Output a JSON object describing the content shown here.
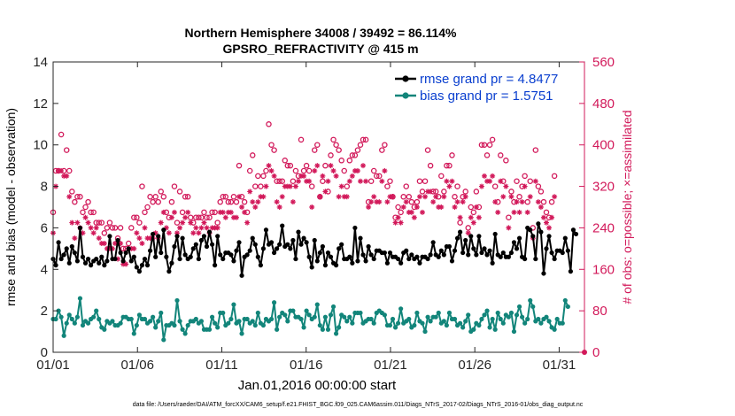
{
  "colors": {
    "rmse": "#000000",
    "bias": "#12857a",
    "obs": "#d2195a",
    "legend_text": "#0a3fcf"
  },
  "chart_data": {
    "type": "line",
    "title_line1": "Northern Hemisphere 34008 / 39492 = 86.114%",
    "title_line2": "GPSRO_REFRACTIVITY @ 415 m",
    "xlabel": "Jan.01,2016 00:00:00 start",
    "ylabel_left": "rmse and bias (model - observation)",
    "ylabel_right": "# of obs: o=possible; ×=assimilated",
    "footnote": "data file: /Users/raeder/DAI/ATM_forcXX/CAM6_setup/f.e21.FHIST_BGC.f09_025.CAM6assim.011/Diags_NTrS_2017-02/Diags_NTrS_2016-01/obs_diag_output.nc",
    "xlim": [
      0,
      31.5
    ],
    "ylim_left": [
      0,
      14
    ],
    "ylim_right": [
      0,
      560
    ],
    "yticks_left": [
      "0",
      "2",
      "4",
      "6",
      "8",
      "10",
      "12",
      "14"
    ],
    "yticks_right": [
      "0",
      "80",
      "160",
      "240",
      "320",
      "400",
      "480",
      "560"
    ],
    "xtick_positions": [
      0,
      5,
      10,
      15,
      20,
      25,
      30
    ],
    "xtick_labels": [
      "01/01",
      "01/06",
      "01/11",
      "01/16",
      "01/21",
      "01/26",
      "01/31"
    ],
    "legend": [
      {
        "label": "rmse grand pr = 4.8477",
        "series": "rmse"
      },
      {
        "label": "bias grand pr = 1.5751",
        "series": "bias"
      }
    ],
    "rmse": [
      4.5,
      4.2,
      5.3,
      4.5,
      4.7,
      5,
      4.3,
      5.1,
      4.8,
      4.4,
      6,
      4.6,
      4.3,
      4.5,
      4.2,
      4.4,
      4.5,
      4.3,
      4.6,
      4.2,
      4.4,
      5.6,
      4.5,
      4.5,
      5.4,
      4.8,
      4.4,
      4.8,
      5,
      4.4,
      4.6,
      4.1,
      3.9,
      4.2,
      4.5,
      4.2,
      4.9,
      5.7,
      4.6,
      5.6,
      4.8,
      5.9,
      4.6,
      3.9,
      4.3,
      5.1,
      5.6,
      4.5,
      5.5,
      4.7,
      4.5,
      4.6,
      5,
      5.2,
      4.5,
      5.4,
      5.6,
      5.1,
      5.8,
      5.2,
      4.2,
      5.6,
      4.7,
      4.5,
      4.8,
      4.8,
      4.7,
      4.4,
      4.9,
      5.3,
      3.7,
      4.6,
      4.7,
      4.9,
      5.5,
      5.2,
      4.6,
      4.2,
      5,
      5.9,
      5.2,
      5.3,
      4.8,
      5,
      5.2,
      6.1,
      5.1,
      5.2,
      5,
      5.4,
      4.5,
      5.8,
      5.2,
      5.5,
      5.3,
      4.6,
      4.1,
      5.4,
      4.4,
      4.8,
      5.1,
      4.2,
      4.8,
      4.6,
      4.3,
      4.2,
      5,
      5.2,
      4.5,
      4.5,
      4.6,
      4.3,
      6,
      4.4,
      5.5,
      4.7,
      4.4,
      5.1,
      4.7,
      4.5,
      4.9,
      4.9,
      4.8,
      4.8,
      4.3,
      4.8,
      4.6,
      4.6,
      4.5,
      4.3,
      4.8,
      4.9,
      4.5,
      4.7,
      4.5,
      4.6,
      4.3,
      4.6,
      4.6,
      4.5,
      4.7,
      5.3,
      4.7,
      4.6,
      4.9,
      4.7,
      5.1,
      5.1,
      4.4,
      4.9,
      5.5,
      5.8,
      4.8,
      5.4,
      4.7,
      5.6,
      5,
      4.7,
      5.6,
      4.8,
      5,
      4.7,
      4.9,
      4.3,
      5.7,
      4.7,
      4.6,
      4.8,
      4.6,
      4.6,
      4.8,
      5.3,
      5,
      5.5,
      4.6,
      4.5,
      6,
      5.9,
      5.6,
      4.5,
      6.2,
      5.8,
      3.8,
      5,
      5.6,
      4.8,
      4.5,
      4.9,
      4.9,
      4.8,
      5.5,
      4.9,
      3.9,
      5.9,
      5.7
    ],
    "bias": [
      1.6,
      1.6,
      2,
      1.7,
      0.8,
      1.4,
      1.8,
      1.6,
      1.4,
      1.7,
      2.6,
      1.3,
      1.5,
      1.4,
      1.6,
      1.7,
      2,
      1.6,
      1.2,
      1.1,
      1.5,
      1.4,
      1.5,
      1.3,
      1.3,
      1.4,
      1.7,
      1.7,
      1.6,
      1.6,
      0.9,
      1.3,
      1.8,
      1.6,
      1.6,
      1.4,
      1.5,
      1.7,
      1.2,
      1.5,
      1.9,
      0.6,
      1.3,
      1.3,
      1.4,
      1.3,
      2.5,
      1.5,
      1.1,
      0.9,
      1.3,
      1.5,
      1.5,
      1.6,
      1.4,
      1.5,
      1.1,
      1.1,
      1.1,
      1.7,
      1.4,
      1.2,
      1.9,
      1.9,
      1.3,
      1.4,
      1.6,
      2.3,
      1.4,
      1.5,
      0.9,
      1.6,
      1.6,
      1.4,
      1.5,
      1.3,
      1.9,
      1.4,
      1.3,
      1.6,
      1.5,
      1.6,
      2.4,
      1.1,
      1.7,
      1.9,
      1.8,
      1.5,
      2,
      2,
      1.7,
      1.7,
      1.6,
      1.2,
      2,
      1.8,
      1.6,
      1.7,
      2.3,
      1.3,
      1.1,
      1.7,
      1.1,
      1.8,
      2.2,
      0.9,
      1.2,
      1.8,
      1.7,
      1.5,
      1.7,
      1.4,
      1.9,
      1.9,
      1.9,
      1.4,
      1.5,
      1.6,
      1.6,
      1.4,
      1.9,
      2,
      1.9,
      1.8,
      1.3,
      1.3,
      1.6,
      1.2,
      1.4,
      2.1,
      1.4,
      1.5,
      1.6,
      1.2,
      1.3,
      1.9,
      1.5,
      1.4,
      1,
      1.7,
      1.5,
      1.7,
      1.7,
      1.9,
      1.4,
      1.5,
      1.3,
      1.9,
      1.6,
      1.6,
      1.3,
      1.4,
      1.2,
      1.5,
      1.8,
      1,
      1.1,
      1.4,
      1.3,
      1.6,
      1.8,
      2,
      1.2,
      1.6,
      1.1,
      1.9,
      1.6,
      1.4,
      1.8,
      1.7,
      1.9,
      1,
      1.8,
      2.2,
      1.7,
      1.4,
      1.6,
      2.5,
      2.2,
      1.5,
      1.6,
      1.4,
      1.6,
      1.7,
      1.5,
      1.2,
      1.1,
      1.6,
      1.4,
      1.4,
      2.5,
      2.2
    ],
    "obs_possible": [
      270,
      350,
      350,
      420,
      350,
      390,
      350,
      310,
      290,
      300,
      300,
      270,
      280,
      290,
      270,
      270,
      250,
      250,
      250,
      230,
      240,
      250,
      240,
      240,
      220,
      240,
      200,
      200,
      210,
      240,
      260,
      260,
      250,
      320,
      270,
      280,
      300,
      290,
      300,
      290,
      310,
      300,
      270,
      260,
      290,
      320,
      250,
      310,
      270,
      300,
      300,
      260,
      250,
      260,
      260,
      260,
      270,
      260,
      260,
      270,
      270,
      250,
      290,
      300,
      300,
      290,
      290,
      300,
      290,
      360,
      300,
      290,
      270,
      350,
      380,
      320,
      340,
      320,
      340,
      350,
      440,
      400,
      390,
      330,
      330,
      330,
      370,
      360,
      360,
      330,
      350,
      340,
      410,
      350,
      360,
      350,
      320,
      390,
      400,
      300,
      330,
      360,
      310,
      380,
      410,
      400,
      390,
      370,
      350,
      320,
      370,
      380,
      380,
      390,
      400,
      410,
      410,
      290,
      330,
      350,
      340,
      340,
      390,
      400,
      320,
      330,
      300,
      260,
      280,
      270,
      300,
      320,
      300,
      290,
      280,
      290,
      330,
      310,
      330,
      390,
      360,
      310,
      310,
      300,
      340,
      310,
      360,
      360,
      380,
      300,
      320,
      250,
      300,
      310,
      240,
      280,
      270,
      310,
      280,
      400,
      400,
      380,
      400,
      410,
      320,
      290,
      380,
      330,
      370,
      260,
      310,
      290,
      330,
      300,
      320,
      340,
      290,
      330,
      240,
      390,
      320,
      310,
      290,
      270,
      260,
      290,
      340
    ],
    "obs_assimilated": [
      230,
      320,
      350,
      350,
      340,
      340,
      300,
      250,
      220,
      250,
      240,
      230,
      260,
      250,
      240,
      230,
      240,
      220,
      210,
      210,
      200,
      200,
      200,
      210,
      180,
      210,
      170,
      170,
      200,
      200,
      200,
      230,
      220,
      210,
      240,
      220,
      220,
      220,
      230,
      220,
      250,
      270,
      240,
      230,
      260,
      270,
      230,
      240,
      250,
      260,
      270,
      250,
      230,
      240,
      230,
      240,
      250,
      240,
      230,
      240,
      240,
      240,
      270,
      270,
      260,
      270,
      270,
      260,
      260,
      300,
      280,
      270,
      250,
      310,
      290,
      280,
      290,
      300,
      300,
      320,
      360,
      350,
      340,
      290,
      280,
      300,
      320,
      320,
      320,
      290,
      320,
      330,
      340,
      340,
      330,
      330,
      280,
      350,
      360,
      300,
      340,
      310,
      330,
      360,
      350,
      340,
      300,
      320,
      300,
      300,
      330,
      340,
      350,
      350,
      330,
      360,
      330,
      280,
      290,
      300,
      290,
      290,
      330,
      350,
      290,
      300,
      300,
      250,
      260,
      250,
      280,
      290,
      270,
      270,
      260,
      280,
      300,
      270,
      300,
      310,
      310,
      290,
      300,
      280,
      280,
      300,
      330,
      320,
      330,
      280,
      290,
      260,
      290,
      300,
      230,
      260,
      250,
      280,
      260,
      320,
      340,
      330,
      330,
      340,
      290,
      270,
      330,
      300,
      320,
      240,
      300,
      270,
      290,
      270,
      290,
      320,
      270,
      300,
      220,
      330,
      290,
      280,
      260,
      250,
      240,
      260,
      300
    ]
  }
}
